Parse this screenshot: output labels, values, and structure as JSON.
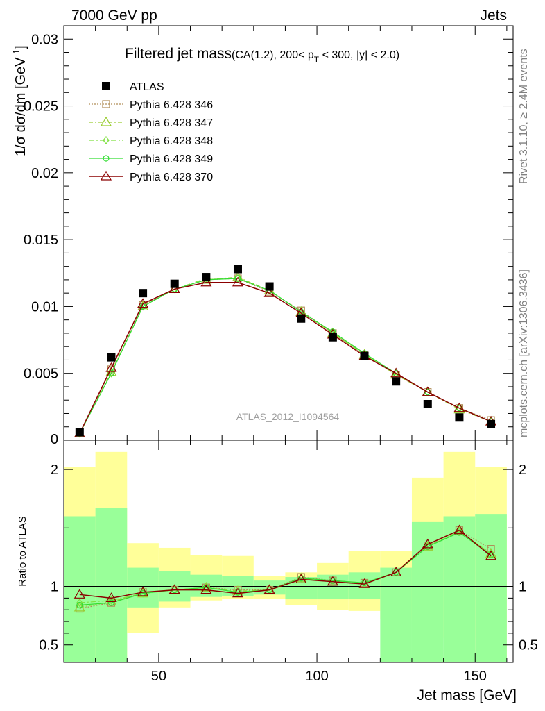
{
  "header": {
    "left": "7000 GeV pp",
    "right": "Jets"
  },
  "side_labels": {
    "rivet": "Rivet 3.1.10, ≥ 2.4M events",
    "mcplots": "mcplots.cern.ch [arXiv:1306.3436]"
  },
  "watermark": "ATLAS_2012_I1094564",
  "colors": {
    "data": "#000000",
    "s346": "#b08d57",
    "s347": "#9acd32",
    "s348": "#7fe040",
    "s349": "#33dd33",
    "s370": "#8b0000",
    "band_inner": "#99ff99",
    "band_outer": "#ffff99"
  },
  "chart_data": [
    {
      "type": "scatter",
      "title_main": "Filtered jet mass",
      "title_sub_prefix": "(CA(1.2), 200< p",
      "title_sub_index": "T",
      "title_sub_suffix": " < 300, |y| < 2.0)",
      "ylabel": "1/σ dσ/dm [GeV",
      "ylabel_sup": "-1",
      "ylabel_close": "]",
      "xlim": [
        20,
        162
      ],
      "ylim": [
        0,
        0.031
      ],
      "yticks": [
        "0.005",
        "0.01",
        "0.015",
        "0.02",
        "0.025",
        "0.03"
      ],
      "yzero": "0",
      "x": [
        25,
        35,
        45,
        55,
        65,
        75,
        85,
        95,
        105,
        115,
        125,
        135,
        145,
        155
      ],
      "series": [
        {
          "name": "ATLAS",
          "key": "data",
          "marker": "square",
          "values": [
            0.0006,
            0.0062,
            0.011,
            0.0117,
            0.0122,
            0.0128,
            0.0115,
            0.0091,
            0.0077,
            0.0063,
            0.0044,
            0.0027,
            0.0017,
            0.0012
          ]
        },
        {
          "name": "Pythia 6.428 346",
          "key": "s346",
          "marker": "open-square",
          "values": [
            0.0005,
            0.0053,
            0.0101,
            0.0113,
            0.012,
            0.0121,
            0.0111,
            0.0097,
            0.008,
            0.0064,
            0.0049,
            0.0036,
            0.0024,
            0.0015
          ]
        },
        {
          "name": "Pythia 6.428 347",
          "key": "s347",
          "marker": "triangle",
          "values": [
            0.0005,
            0.0051,
            0.01,
            0.0113,
            0.012,
            0.0122,
            0.0112,
            0.0096,
            0.008,
            0.0064,
            0.0049,
            0.0036,
            0.0023,
            0.0014
          ]
        },
        {
          "name": "Pythia 6.428 348",
          "key": "s348",
          "marker": "diamond",
          "values": [
            0.0005,
            0.005,
            0.01,
            0.0113,
            0.0121,
            0.0121,
            0.0112,
            0.0096,
            0.0081,
            0.0064,
            0.005,
            0.0036,
            0.0024,
            0.0014
          ]
        },
        {
          "name": "Pythia 6.428 349",
          "key": "s349",
          "marker": "circle",
          "values": [
            0.0005,
            0.005,
            0.01,
            0.0113,
            0.012,
            0.0121,
            0.0112,
            0.0096,
            0.0081,
            0.0065,
            0.005,
            0.0036,
            0.0024,
            0.0014
          ]
        },
        {
          "name": "Pythia 6.428 370",
          "key": "s370",
          "marker": "triangle",
          "values": [
            0.0005,
            0.0054,
            0.0102,
            0.0113,
            0.0118,
            0.0118,
            0.011,
            0.0095,
            0.0079,
            0.0063,
            0.005,
            0.0036,
            0.0024,
            0.0014
          ]
        }
      ]
    },
    {
      "type": "line",
      "ylabel": "Ratio to ATLAS",
      "xlabel": "Jet mass [GeV]",
      "xlim": [
        20,
        162
      ],
      "ylim": [
        0.35,
        2.25
      ],
      "yticks": [
        "0.5",
        "1",
        "2"
      ],
      "yticks_right": [
        "0.5",
        "1",
        "2"
      ],
      "xticks": [
        "50",
        "100",
        "150"
      ],
      "bins": [
        [
          20,
          30
        ],
        [
          30,
          40
        ],
        [
          40,
          50
        ],
        [
          50,
          60
        ],
        [
          60,
          70
        ],
        [
          70,
          80
        ],
        [
          80,
          90
        ],
        [
          90,
          100
        ],
        [
          100,
          110
        ],
        [
          110,
          120
        ],
        [
          120,
          130
        ],
        [
          130,
          140
        ],
        [
          140,
          150
        ],
        [
          150,
          160
        ]
      ],
      "band_inner": [
        [
          0.35,
          1.6
        ],
        [
          0.35,
          1.67
        ],
        [
          0.82,
          1.16
        ],
        [
          0.87,
          1.13
        ],
        [
          0.91,
          1.1
        ],
        [
          0.92,
          1.09
        ],
        [
          0.93,
          1.05
        ],
        [
          0.89,
          1.08
        ],
        [
          0.89,
          1.1
        ],
        [
          0.89,
          1.12
        ],
        [
          0.35,
          1.16
        ],
        [
          0.35,
          1.55
        ],
        [
          0.35,
          1.6
        ],
        [
          0.35,
          1.62
        ]
      ],
      "band_outer": [
        [
          0.35,
          2.02
        ],
        [
          0.35,
          2.15
        ],
        [
          0.6,
          1.37
        ],
        [
          0.82,
          1.33
        ],
        [
          0.88,
          1.27
        ],
        [
          0.89,
          1.26
        ],
        [
          0.89,
          1.09
        ],
        [
          0.84,
          1.12
        ],
        [
          0.8,
          1.2
        ],
        [
          0.79,
          1.3
        ],
        [
          0.72,
          1.3
        ],
        [
          0.71,
          1.93
        ],
        [
          0.56,
          2.15
        ],
        [
          0.35,
          2.02
        ]
      ],
      "series": [
        {
          "name": "Pythia 6.428 346",
          "key": "s346",
          "marker": "open-square",
          "values": [
            0.81,
            0.86,
            0.95,
            0.97,
            0.99,
            0.97,
            0.97,
            1.08,
            1.05,
            1.03,
            1.12,
            1.35,
            1.48,
            1.32
          ]
        },
        {
          "name": "Pythia 6.428 347",
          "key": "s347",
          "marker": "triangle",
          "values": [
            0.82,
            0.87,
            0.94,
            0.97,
            0.99,
            0.96,
            0.97,
            1.07,
            1.04,
            1.02,
            1.12,
            1.34,
            1.47,
            1.28
          ]
        },
        {
          "name": "Pythia 6.428 348",
          "key": "s348",
          "marker": "diamond",
          "values": [
            0.86,
            0.88,
            0.94,
            0.97,
            0.99,
            0.95,
            0.97,
            1.07,
            1.05,
            1.03,
            1.12,
            1.34,
            1.47,
            1.28
          ]
        },
        {
          "name": "Pythia 6.428 349",
          "key": "s349",
          "marker": "circle",
          "values": [
            0.84,
            0.86,
            0.94,
            0.97,
            0.99,
            0.95,
            0.97,
            1.07,
            1.05,
            1.03,
            1.12,
            1.34,
            1.46,
            1.27
          ]
        },
        {
          "name": "Pythia 6.428 370",
          "key": "s370",
          "marker": "triangle",
          "values": [
            0.93,
            0.9,
            0.95,
            0.97,
            0.97,
            0.94,
            0.97,
            1.06,
            1.04,
            1.02,
            1.12,
            1.36,
            1.48,
            1.26
          ]
        }
      ]
    }
  ]
}
